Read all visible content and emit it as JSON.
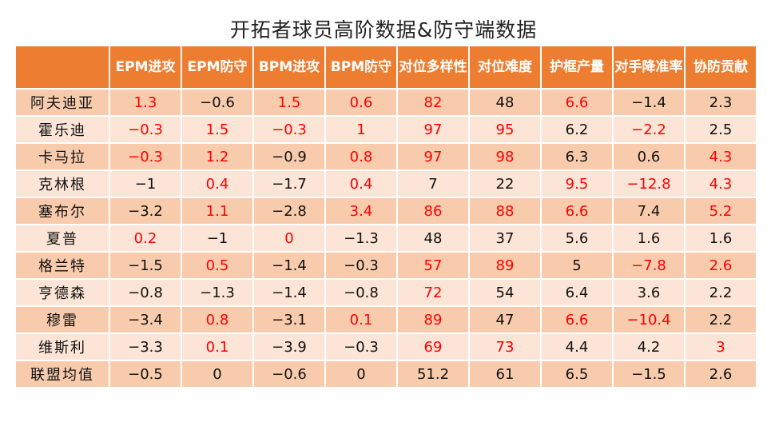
{
  "title": "开拓者球员高阶数据&防守端数据",
  "colors": {
    "header": "#ED7D31",
    "row_dark": "#F8CBAD",
    "row_light": "#FCE4D6",
    "highlight": "#FF0000"
  },
  "columns": [
    "EPM进攻",
    "EPM防守",
    "BPM进攻",
    "BPM防守",
    "对位多样性",
    "对位难度",
    "护框产量",
    "对手降准率",
    "协防贡献"
  ],
  "rows": [
    {
      "name": "阿夫迪亚",
      "cells": [
        {
          "v": "1.3",
          "red": true
        },
        {
          "v": "-0.6",
          "red": false
        },
        {
          "v": "1.5",
          "red": true
        },
        {
          "v": "0.6",
          "red": true
        },
        {
          "v": "82",
          "red": true
        },
        {
          "v": "48",
          "red": false
        },
        {
          "v": "6.6",
          "red": true
        },
        {
          "v": "-1.4",
          "red": false
        },
        {
          "v": "2.3",
          "red": false
        }
      ]
    },
    {
      "name": "霍乐迪",
      "cells": [
        {
          "v": "-0.3",
          "red": true
        },
        {
          "v": "1.5",
          "red": true
        },
        {
          "v": "-0.3",
          "red": true
        },
        {
          "v": "1",
          "red": true
        },
        {
          "v": "97",
          "red": true
        },
        {
          "v": "95",
          "red": true
        },
        {
          "v": "6.2",
          "red": false
        },
        {
          "v": "-2.2",
          "red": true
        },
        {
          "v": "2.5",
          "red": false
        }
      ]
    },
    {
      "name": "卡马拉",
      "cells": [
        {
          "v": "-0.3",
          "red": true
        },
        {
          "v": "1.2",
          "red": true
        },
        {
          "v": "-0.9",
          "red": false
        },
        {
          "v": "0.8",
          "red": true
        },
        {
          "v": "97",
          "red": true
        },
        {
          "v": "98",
          "red": true
        },
        {
          "v": "6.3",
          "red": false
        },
        {
          "v": "0.6",
          "red": false
        },
        {
          "v": "4.3",
          "red": true
        }
      ]
    },
    {
      "name": "克林根",
      "cells": [
        {
          "v": "-1",
          "red": false
        },
        {
          "v": "0.4",
          "red": true
        },
        {
          "v": "-1.7",
          "red": false
        },
        {
          "v": "0.4",
          "red": true
        },
        {
          "v": "7",
          "red": false
        },
        {
          "v": "22",
          "red": false
        },
        {
          "v": "9.5",
          "red": true
        },
        {
          "v": "-12.8",
          "red": true
        },
        {
          "v": "4.3",
          "red": true
        }
      ]
    },
    {
      "name": "塞布尔",
      "cells": [
        {
          "v": "-3.2",
          "red": false
        },
        {
          "v": "1.1",
          "red": true
        },
        {
          "v": "-2.8",
          "red": false
        },
        {
          "v": "3.4",
          "red": true
        },
        {
          "v": "86",
          "red": true
        },
        {
          "v": "88",
          "red": true
        },
        {
          "v": "6.6",
          "red": true
        },
        {
          "v": "7.4",
          "red": false
        },
        {
          "v": "5.2",
          "red": true
        }
      ]
    },
    {
      "name": "夏普",
      "cells": [
        {
          "v": "0.2",
          "red": true
        },
        {
          "v": "-1",
          "red": false
        },
        {
          "v": "0",
          "red": true
        },
        {
          "v": "-1.3",
          "red": false
        },
        {
          "v": "48",
          "red": false
        },
        {
          "v": "37",
          "red": false
        },
        {
          "v": "5.6",
          "red": false
        },
        {
          "v": "1.6",
          "red": false
        },
        {
          "v": "1.6",
          "red": false
        }
      ]
    },
    {
      "name": "格兰特",
      "cells": [
        {
          "v": "-1.5",
          "red": false
        },
        {
          "v": "0.5",
          "red": true
        },
        {
          "v": "-1.4",
          "red": false
        },
        {
          "v": "-0.3",
          "red": false
        },
        {
          "v": "57",
          "red": true
        },
        {
          "v": "89",
          "red": true
        },
        {
          "v": "5",
          "red": false
        },
        {
          "v": "-7.8",
          "red": true
        },
        {
          "v": "2.6",
          "red": true
        }
      ]
    },
    {
      "name": "亨德森",
      "cells": [
        {
          "v": "-0.8",
          "red": false
        },
        {
          "v": "-1.3",
          "red": false
        },
        {
          "v": "-1.4",
          "red": false
        },
        {
          "v": "-0.8",
          "red": false
        },
        {
          "v": "72",
          "red": true
        },
        {
          "v": "54",
          "red": false
        },
        {
          "v": "6.4",
          "red": false
        },
        {
          "v": "3.6",
          "red": false
        },
        {
          "v": "2.2",
          "red": false
        }
      ]
    },
    {
      "name": "穆雷",
      "cells": [
        {
          "v": "-3.4",
          "red": false
        },
        {
          "v": "0.8",
          "red": true
        },
        {
          "v": "-3.1",
          "red": false
        },
        {
          "v": "0.1",
          "red": true
        },
        {
          "v": "89",
          "red": true
        },
        {
          "v": "47",
          "red": false
        },
        {
          "v": "6.6",
          "red": true
        },
        {
          "v": "-10.4",
          "red": true
        },
        {
          "v": "2.2",
          "red": false
        }
      ]
    },
    {
      "name": "维斯利",
      "cells": [
        {
          "v": "-3.3",
          "red": false
        },
        {
          "v": "0.1",
          "red": true
        },
        {
          "v": "-3.9",
          "red": false
        },
        {
          "v": "-0.3",
          "red": false
        },
        {
          "v": "69",
          "red": true
        },
        {
          "v": "73",
          "red": true
        },
        {
          "v": "4.4",
          "red": false
        },
        {
          "v": "4.2",
          "red": false
        },
        {
          "v": "3",
          "red": true
        }
      ]
    },
    {
      "name": "联盟均值",
      "cells": [
        {
          "v": "-0.5",
          "red": false
        },
        {
          "v": "0",
          "red": false
        },
        {
          "v": "-0.6",
          "red": false
        },
        {
          "v": "0",
          "red": false
        },
        {
          "v": "51.2",
          "red": false
        },
        {
          "v": "61",
          "red": false
        },
        {
          "v": "6.5",
          "red": false
        },
        {
          "v": "-1.5",
          "red": false
        },
        {
          "v": "2.6",
          "red": false
        }
      ]
    }
  ]
}
